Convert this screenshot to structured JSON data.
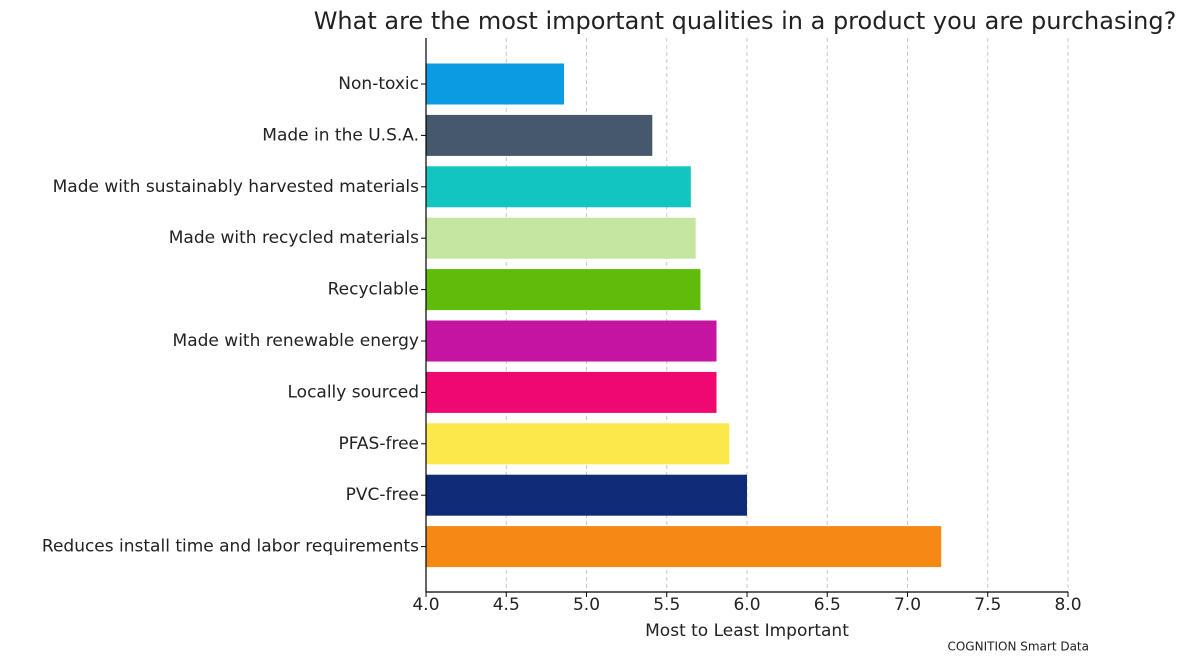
{
  "chart_data": {
    "type": "barh",
    "title": "What are the most important qualities in a product you are purchasing?",
    "x_label": "Most to Least Important",
    "source": "COGNITION Smart Data",
    "categories": [
      "Non-toxic",
      "Made in the U.S.A.",
      "Made with sustainably harvested materials",
      "Made with recycled materials",
      "Recyclable",
      "Made with renewable energy",
      "Locally sourced",
      "PFAS-free",
      "PVC-free",
      "Reduces install time and labor requirements"
    ],
    "values": [
      4.86,
      5.41,
      5.65,
      5.68,
      5.71,
      5.81,
      5.81,
      5.89,
      6.0,
      7.21
    ],
    "colors": [
      "#0a9be3",
      "#46596c",
      "#12c5c0",
      "#c4e6a0",
      "#5fbc0a",
      "#c514a0",
      "#ef0870",
      "#fde84c",
      "#102c78",
      "#f68914"
    ],
    "xlim": [
      4.0,
      8.0
    ],
    "xticks": [
      {
        "value": 4.0,
        "label": "4.0"
      },
      4.5,
      {
        "value": 5.0,
        "label": "5.0"
      },
      5.5,
      {
        "value": 6.0,
        "label": "6.0"
      },
      6.5,
      {
        "value": 7.0,
        "label": "7.0"
      },
      7.5,
      {
        "value": 8.0,
        "label": "8.0"
      }
    ],
    "grid": true
  }
}
